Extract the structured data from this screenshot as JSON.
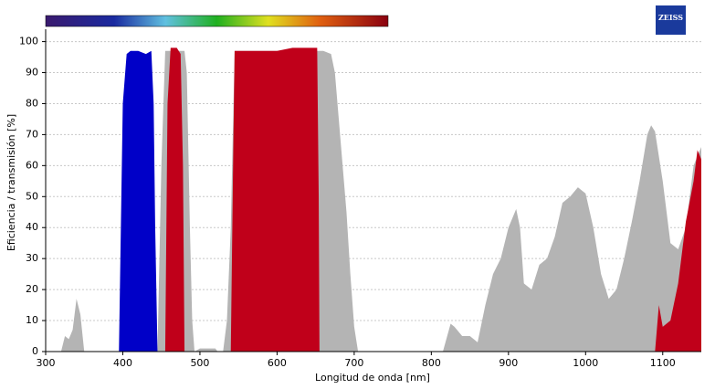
{
  "chart_data": {
    "type": "area",
    "logo": "ZEISS",
    "xlabel": "Longitud de onda [nm]",
    "ylabel": "Eficiencia / transmisión [%]",
    "xlim": [
      300,
      1150
    ],
    "xticks": [
      300,
      400,
      500,
      600,
      700,
      800,
      900,
      1000,
      1100
    ],
    "ylim": [
      0,
      104
    ],
    "yticks": [
      0,
      10,
      20,
      30,
      40,
      50,
      60,
      70,
      80,
      90,
      100
    ],
    "grid": true,
    "series": [
      {
        "color": "#b4b4b4",
        "x": [
          320,
          325,
          330,
          335,
          340,
          345,
          350,
          445,
          450,
          455,
          480,
          483,
          487,
          490,
          493,
          500,
          520,
          523,
          530,
          535,
          540,
          545,
          650,
          660,
          670,
          675,
          680,
          690,
          695,
          700,
          705,
          815,
          825,
          830,
          840,
          850,
          860,
          870,
          880,
          890,
          900,
          910,
          915,
          920,
          930,
          940,
          950,
          960,
          970,
          980,
          990,
          1000,
          1010,
          1020,
          1030,
          1040,
          1050,
          1060,
          1070,
          1080,
          1085,
          1090,
          1100,
          1110,
          1120,
          1130,
          1140,
          1150,
          1150
        ],
        "values": [
          0,
          5,
          4,
          7,
          17,
          12,
          0,
          0,
          60,
          97,
          97,
          90,
          40,
          10,
          0,
          1,
          1,
          0,
          0,
          10,
          40,
          97,
          97,
          97,
          96,
          90,
          75,
          45,
          25,
          8,
          0,
          0,
          9,
          8,
          5,
          5,
          3,
          15,
          25,
          30,
          40,
          46,
          40,
          22,
          20,
          28,
          30,
          37,
          48,
          50,
          53,
          51,
          40,
          25,
          17,
          20,
          30,
          42,
          55,
          70,
          73,
          71,
          55,
          35,
          33,
          40,
          60,
          66,
          0
        ]
      },
      {
        "color": "#0000c8",
        "x": [
          395,
          400,
          405,
          410,
          420,
          430,
          437,
          440,
          442,
          445
        ],
        "values": [
          0,
          80,
          96,
          97,
          97,
          96,
          97,
          80,
          40,
          0
        ]
      },
      {
        "color": "#c0001a",
        "x": [
          455,
          458,
          462,
          470,
          475,
          478,
          480,
          null,
          540,
          543,
          545,
          560,
          580,
          600,
          620,
          640,
          652,
          654,
          655,
          null,
          1090,
          1095,
          1100,
          1110,
          1120,
          1130,
          1140,
          1145,
          1150,
          1150
        ],
        "values": [
          0,
          80,
          98,
          98,
          96,
          60,
          0,
          null,
          0,
          60,
          97,
          97,
          97,
          97,
          98,
          98,
          98,
          50,
          0,
          null,
          0,
          15,
          8,
          10,
          22,
          42,
          55,
          65,
          62,
          0
        ]
      }
    ]
  }
}
